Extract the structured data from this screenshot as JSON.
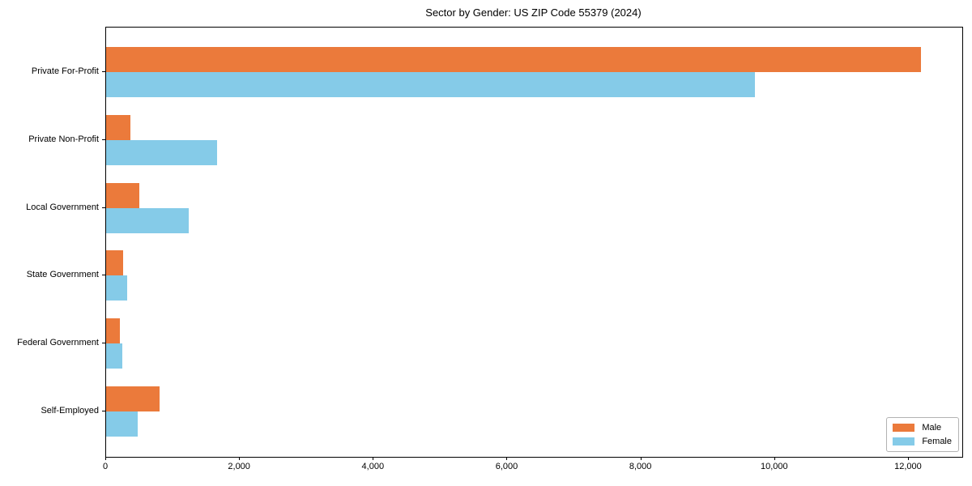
{
  "chart_data": {
    "type": "bar",
    "orientation": "horizontal",
    "title": "Sector by Gender: US ZIP Code 55379 (2024)",
    "categories": [
      "Private For-Profit",
      "Private Non-Profit",
      "Local Government",
      "State Government",
      "Federal Government",
      "Self-Employed"
    ],
    "series": [
      {
        "name": "Male",
        "color": "#EB7A3B",
        "values": [
          12180,
          360,
          500,
          260,
          200,
          800
        ]
      },
      {
        "name": "Female",
        "color": "#85CBE8",
        "values": [
          9700,
          1660,
          1240,
          310,
          240,
          470
        ]
      }
    ],
    "xlabel": "",
    "ylabel": "",
    "xlim": [
      0,
      12800
    ],
    "x_ticks": [
      0,
      2000,
      4000,
      6000,
      8000,
      10000,
      12000
    ],
    "x_tick_labels": [
      "0",
      "2,000",
      "4,000",
      "6,000",
      "8,000",
      "10,000",
      "12,000"
    ],
    "legend_position": "lower right",
    "grid": false,
    "plot_border_color": "#000000",
    "background_color": "#ffffff"
  }
}
